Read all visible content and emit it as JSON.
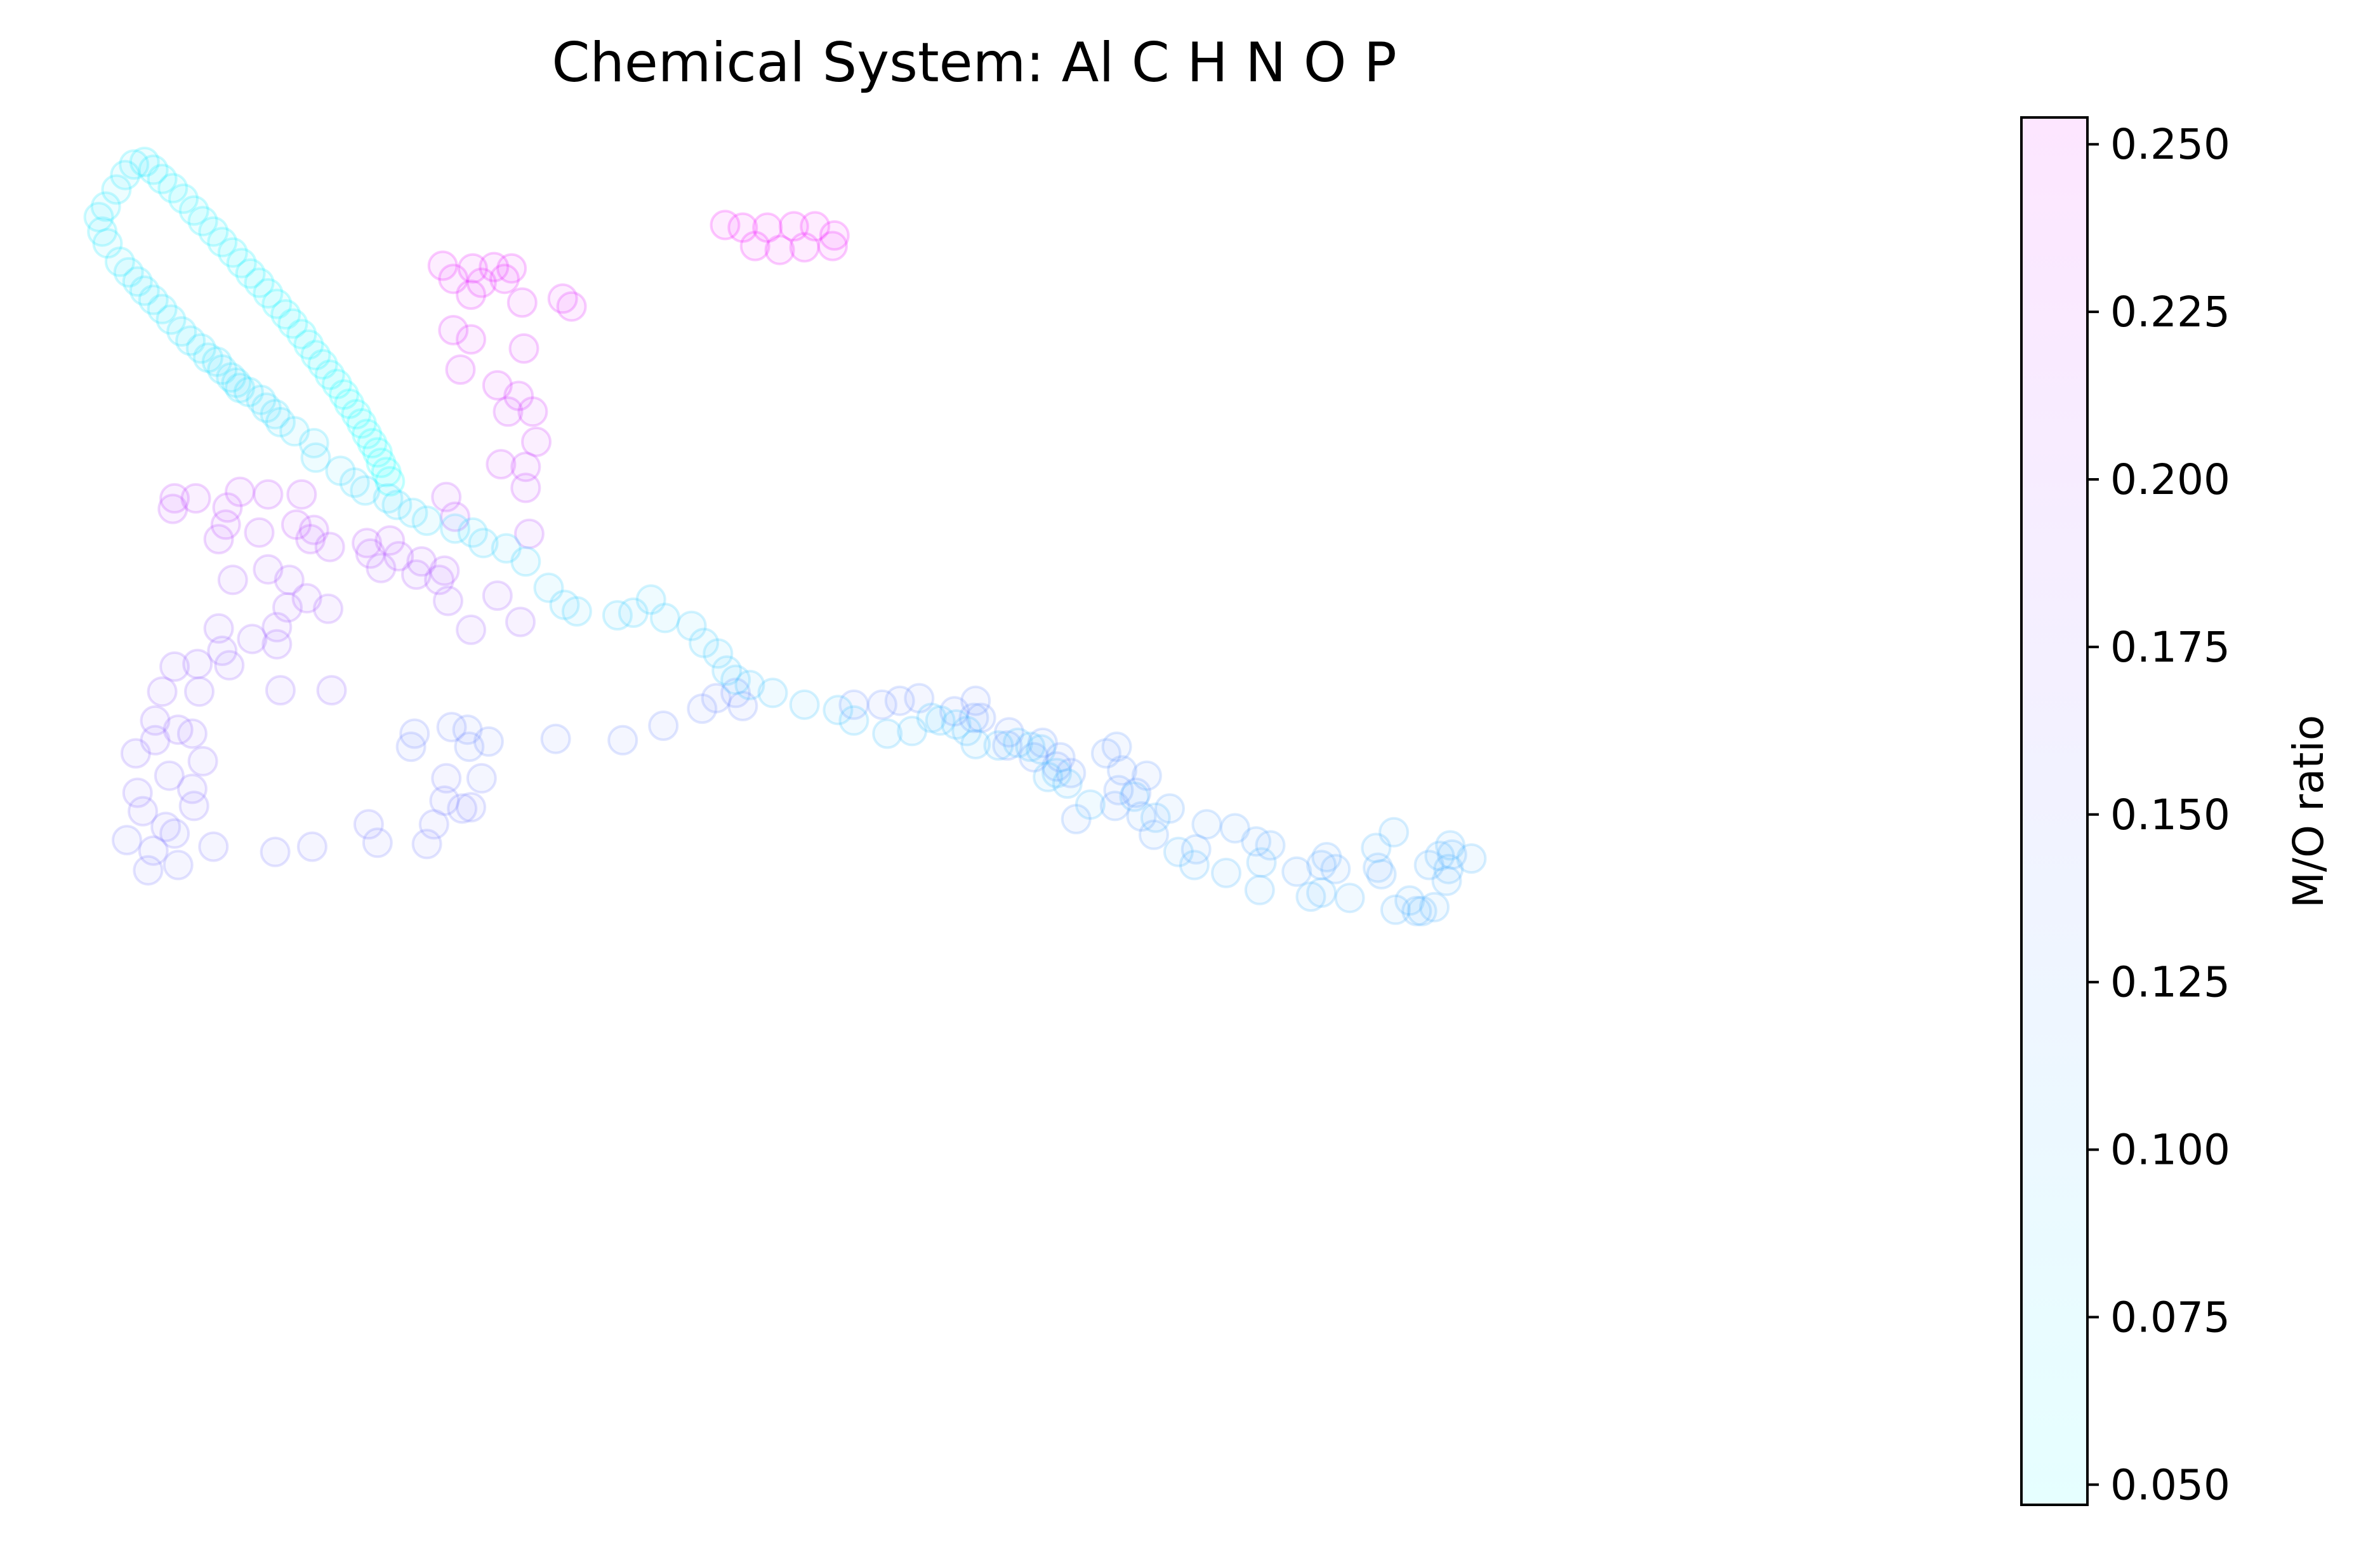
{
  "chart_data": {
    "type": "scatter",
    "title": "Chemical System: Al C H N O P",
    "xlabel": "",
    "ylabel": "",
    "axes_visible": false,
    "grid": false,
    "marker": "hollow circle, semi-transparent",
    "color_mapping": "points colored by M/O ratio from cyan (low) to magenta (high)",
    "colorbar": {
      "label": "M/O ratio",
      "range": [
        0.047,
        0.254
      ],
      "ticks": [
        "0.050",
        "0.075",
        "0.100",
        "0.125",
        "0.150",
        "0.175",
        "0.200",
        "0.225",
        "0.250"
      ],
      "tick_values": [
        0.05,
        0.075,
        0.1,
        0.125,
        0.15,
        0.175,
        0.2,
        0.225,
        0.25
      ],
      "color_low": "#00ffff",
      "color_high": "#ff00ff",
      "placement": "right"
    },
    "xlim": [
      0,
      1000
    ],
    "ylim": [
      0,
      1000
    ],
    "points": [
      [
        357,
        952,
        0.247
      ],
      [
        367,
        950,
        0.246
      ],
      [
        381,
        950,
        0.246
      ],
      [
        396,
        951,
        0.246
      ],
      [
        408,
        951,
        0.246
      ],
      [
        419,
        944,
        0.243
      ],
      [
        374,
        936,
        0.242
      ],
      [
        388,
        933,
        0.241
      ],
      [
        402,
        935,
        0.24
      ],
      [
        418,
        936,
        0.24
      ],
      [
        197,
        921,
        0.238
      ],
      [
        214,
        919,
        0.237
      ],
      [
        226,
        920,
        0.237
      ],
      [
        236,
        919,
        0.236
      ],
      [
        203,
        911,
        0.235
      ],
      [
        219,
        908,
        0.235
      ],
      [
        232,
        911,
        0.234
      ],
      [
        213,
        899,
        0.232
      ],
      [
        242,
        893,
        0.23
      ],
      [
        265,
        896,
        0.23
      ],
      [
        270,
        890,
        0.229
      ],
      [
        203,
        872,
        0.227
      ],
      [
        213,
        865,
        0.226
      ],
      [
        243,
        858,
        0.224
      ],
      [
        207,
        842,
        0.222
      ],
      [
        228,
        830,
        0.22
      ],
      [
        240,
        822,
        0.218
      ],
      [
        248,
        810,
        0.216
      ],
      [
        234,
        810,
        0.215
      ],
      [
        250,
        787,
        0.212
      ],
      [
        230,
        770,
        0.209
      ],
      [
        244,
        768,
        0.208
      ],
      [
        244,
        752,
        0.205
      ],
      [
        45,
        744,
        0.201
      ],
      [
        57,
        744,
        0.201
      ],
      [
        82,
        749,
        0.201
      ],
      [
        98,
        747,
        0.2
      ],
      [
        117,
        747,
        0.2
      ],
      [
        199,
        745,
        0.2
      ],
      [
        44,
        736,
        0.199
      ],
      [
        75,
        737,
        0.199
      ],
      [
        74,
        724,
        0.198
      ],
      [
        114,
        724,
        0.198
      ],
      [
        204,
        730,
        0.198
      ],
      [
        246,
        717,
        0.196
      ],
      [
        70,
        713,
        0.196
      ],
      [
        93,
        718,
        0.196
      ],
      [
        122,
        713,
        0.195
      ],
      [
        124,
        720,
        0.195
      ],
      [
        154,
        710,
        0.193
      ],
      [
        167,
        712,
        0.193
      ],
      [
        133,
        707,
        0.192
      ],
      [
        156,
        702,
        0.191
      ],
      [
        172,
        700,
        0.19
      ],
      [
        185,
        696,
        0.189
      ],
      [
        198,
        689,
        0.188
      ],
      [
        195,
        682,
        0.187
      ],
      [
        162,
        691,
        0.186
      ],
      [
        182,
        686,
        0.186
      ],
      [
        98,
        690,
        0.186
      ],
      [
        110,
        682,
        0.185
      ],
      [
        78,
        682,
        0.185
      ],
      [
        120,
        668,
        0.183
      ],
      [
        132,
        660,
        0.182
      ],
      [
        109,
        661,
        0.182
      ],
      [
        200,
        666,
        0.181
      ],
      [
        228,
        670,
        0.181
      ],
      [
        213,
        644,
        0.178
      ],
      [
        241,
        650,
        0.178
      ],
      [
        103,
        646,
        0.177
      ],
      [
        103,
        633,
        0.176
      ],
      [
        89,
        637,
        0.175
      ],
      [
        70,
        645,
        0.175
      ],
      [
        72,
        628,
        0.174
      ],
      [
        58,
        618,
        0.173
      ],
      [
        76,
        617,
        0.172
      ],
      [
        45,
        616,
        0.172
      ],
      [
        38,
        597,
        0.171
      ],
      [
        59,
        597,
        0.17
      ],
      [
        105,
        598,
        0.17
      ],
      [
        134,
        598,
        0.17
      ],
      [
        34,
        575,
        0.168
      ],
      [
        47,
        568,
        0.167
      ],
      [
        34,
        560,
        0.166
      ],
      [
        55,
        565,
        0.166
      ],
      [
        61,
        544,
        0.164
      ],
      [
        23,
        550,
        0.164
      ],
      [
        42,
        533,
        0.162
      ],
      [
        24,
        520,
        0.161
      ],
      [
        55,
        523,
        0.16
      ],
      [
        56,
        510,
        0.158
      ],
      [
        27,
        506,
        0.158
      ],
      [
        40,
        494,
        0.156
      ],
      [
        45,
        489,
        0.155
      ],
      [
        67,
        479,
        0.154
      ],
      [
        33,
        476,
        0.153
      ],
      [
        47,
        465,
        0.152
      ],
      [
        30,
        461,
        0.151
      ],
      [
        18,
        484,
        0.15
      ],
      [
        102,
        475,
        0.15
      ],
      [
        123,
        479,
        0.149
      ],
      [
        160,
        482,
        0.148
      ],
      [
        188,
        481,
        0.148
      ],
      [
        155,
        496,
        0.149
      ],
      [
        192,
        496,
        0.148
      ],
      [
        208,
        508,
        0.148
      ],
      [
        198,
        514,
        0.147
      ],
      [
        213,
        509,
        0.147
      ],
      [
        199,
        531,
        0.146
      ],
      [
        219,
        531,
        0.145
      ],
      [
        179,
        555,
        0.144
      ],
      [
        181,
        565,
        0.143
      ],
      [
        202,
        570,
        0.142
      ],
      [
        212,
        555,
        0.141
      ],
      [
        223,
        559,
        0.14
      ],
      [
        211,
        568,
        0.14
      ],
      [
        261,
        561,
        0.14
      ],
      [
        299,
        560,
        0.14
      ],
      [
        322,
        571,
        0.14
      ],
      [
        344,
        584,
        0.139
      ],
      [
        352,
        592,
        0.139
      ],
      [
        367,
        586,
        0.138
      ],
      [
        363,
        596,
        0.138
      ],
      [
        430,
        587,
        0.137
      ],
      [
        446,
        587,
        0.137
      ],
      [
        456,
        590,
        0.137
      ],
      [
        467,
        592,
        0.136
      ],
      [
        487,
        582,
        0.136
      ],
      [
        499,
        590,
        0.136
      ],
      [
        502,
        577,
        0.135
      ],
      [
        518,
        566,
        0.135
      ],
      [
        498,
        577,
        0.134
      ],
      [
        517,
        556,
        0.134
      ],
      [
        537,
        558,
        0.133
      ],
      [
        547,
        547,
        0.132
      ],
      [
        532,
        547,
        0.132
      ],
      [
        553,
        535,
        0.131
      ],
      [
        545,
        540,
        0.131
      ],
      [
        573,
        550,
        0.13
      ],
      [
        579,
        555,
        0.13
      ],
      [
        582,
        537,
        0.129
      ],
      [
        580,
        522,
        0.128
      ],
      [
        596,
        533,
        0.128
      ],
      [
        590,
        520,
        0.127
      ],
      [
        578,
        510,
        0.126
      ],
      [
        556,
        500,
        0.125
      ],
      [
        593,
        502,
        0.124
      ],
      [
        600,
        488,
        0.123
      ],
      [
        624,
        477,
        0.122
      ],
      [
        609,
        508,
        0.122
      ],
      [
        630,
        496,
        0.121
      ],
      [
        646,
        493,
        0.12
      ],
      [
        681,
        460,
        0.118
      ],
      [
        658,
        483,
        0.118
      ],
      [
        666,
        480,
        0.117
      ],
      [
        698,
        471,
        0.116
      ],
      [
        695,
        465,
        0.116
      ],
      [
        703,
        462,
        0.116
      ],
      [
        727,
        463,
        0.115
      ],
      [
        729,
        458,
        0.114
      ],
      [
        756,
        465,
        0.113
      ],
      [
        769,
        473,
        0.112
      ],
      [
        749,
        430,
        0.112
      ],
      [
        737,
        431,
        0.111
      ],
      [
        745,
        438,
        0.111
      ],
      [
        752,
        430,
        0.11
      ],
      [
        759,
        433,
        0.11
      ],
      [
        766,
        453,
        0.11
      ],
      [
        767,
        462,
        0.11
      ],
      [
        762,
        472,
        0.109
      ],
      [
        780,
        470,
        0.108
      ],
      [
        768,
        480,
        0.108
      ],
      [
        736,
        490,
        0.107
      ],
      [
        726,
        478,
        0.107
      ],
      [
        689,
        441,
        0.106
      ],
      [
        695,
        444,
        0.106
      ],
      [
        711,
        440,
        0.106
      ],
      [
        660,
        446,
        0.106
      ],
      [
        661,
        467,
        0.106
      ],
      [
        641,
        459,
        0.105
      ],
      [
        623,
        465,
        0.105
      ],
      [
        614,
        475,
        0.105
      ],
      [
        601,
        501,
        0.105
      ],
      [
        589,
        517,
        0.105
      ],
      [
        564,
        511,
        0.104
      ],
      [
        551,
        527,
        0.104
      ],
      [
        545,
        535,
        0.104
      ],
      [
        540,
        532,
        0.103
      ],
      [
        536,
        553,
        0.103
      ],
      [
        530,
        555,
        0.103
      ],
      [
        523,
        558,
        0.102
      ],
      [
        512,
        556,
        0.102
      ],
      [
        499,
        557,
        0.101
      ],
      [
        494,
        567,
        0.101
      ],
      [
        488,
        572,
        0.1
      ],
      [
        479,
        575,
        0.1
      ],
      [
        474,
        577,
        0.099
      ],
      [
        463,
        567,
        0.098
      ],
      [
        449,
        565,
        0.097
      ],
      [
        430,
        575,
        0.096
      ],
      [
        421,
        583,
        0.096
      ],
      [
        402,
        587,
        0.095
      ],
      [
        384,
        596,
        0.095
      ],
      [
        371,
        602,
        0.094
      ],
      [
        363,
        606,
        0.094
      ],
      [
        358,
        613,
        0.093
      ],
      [
        353,
        626,
        0.092
      ],
      [
        345,
        634,
        0.091
      ],
      [
        338,
        647,
        0.09
      ],
      [
        323,
        653,
        0.089
      ],
      [
        315,
        667,
        0.088
      ],
      [
        305,
        657,
        0.088
      ],
      [
        296,
        655,
        0.088
      ],
      [
        273,
        658,
        0.087
      ],
      [
        266,
        663,
        0.087
      ],
      [
        257,
        676,
        0.086
      ],
      [
        244,
        696,
        0.085
      ],
      [
        233,
        706,
        0.084
      ],
      [
        220,
        710,
        0.084
      ],
      [
        214,
        718,
        0.083
      ],
      [
        204,
        721,
        0.083
      ],
      [
        188,
        727,
        0.082
      ],
      [
        180,
        733,
        0.082
      ],
      [
        171,
        739,
        0.081
      ],
      [
        166,
        744,
        0.081
      ],
      [
        153,
        750,
        0.08
      ],
      [
        147,
        756,
        0.08
      ],
      [
        139,
        765,
        0.079
      ],
      [
        125,
        775,
        0.079
      ],
      [
        124,
        786,
        0.078
      ],
      [
        113,
        795,
        0.078
      ],
      [
        105,
        802,
        0.077
      ],
      [
        102,
        808,
        0.077
      ],
      [
        97,
        813,
        0.076
      ],
      [
        94,
        819,
        0.076
      ],
      [
        87,
        825,
        0.075
      ],
      [
        82,
        828,
        0.075
      ],
      [
        80,
        832,
        0.074
      ],
      [
        77,
        836,
        0.074
      ],
      [
        72,
        842,
        0.073
      ],
      [
        69,
        848,
        0.073
      ],
      [
        64,
        851,
        0.072
      ],
      [
        60,
        858,
        0.072
      ],
      [
        54,
        864,
        0.071
      ],
      [
        49,
        871,
        0.071
      ],
      [
        43,
        880,
        0.07
      ],
      [
        38,
        888,
        0.07
      ],
      [
        33,
        895,
        0.069
      ],
      [
        28,
        902,
        0.069
      ],
      [
        24,
        909,
        0.068
      ],
      [
        19,
        916,
        0.068
      ],
      [
        14,
        924,
        0.067
      ],
      [
        7,
        938,
        0.067
      ],
      [
        4,
        947,
        0.066
      ],
      [
        2,
        958,
        0.066
      ],
      [
        6,
        966,
        0.065
      ],
      [
        12,
        979,
        0.065
      ],
      [
        17,
        990,
        0.064
      ],
      [
        22,
        998,
        0.064
      ],
      [
        28,
        1000,
        0.063
      ],
      [
        33,
        994,
        0.063
      ],
      [
        38,
        987,
        0.062
      ],
      [
        44,
        980,
        0.062
      ],
      [
        50,
        972,
        0.061
      ],
      [
        56,
        963,
        0.061
      ],
      [
        61,
        955,
        0.06
      ],
      [
        67,
        947,
        0.06
      ],
      [
        72,
        939,
        0.059
      ],
      [
        78,
        931,
        0.059
      ],
      [
        83,
        923,
        0.058
      ],
      [
        88,
        915,
        0.058
      ],
      [
        93,
        908,
        0.057
      ],
      [
        98,
        900,
        0.057
      ],
      [
        103,
        892,
        0.056
      ],
      [
        108,
        884,
        0.056
      ],
      [
        112,
        877,
        0.055
      ],
      [
        117,
        869,
        0.055
      ],
      [
        121,
        861,
        0.054
      ],
      [
        125,
        853,
        0.054
      ],
      [
        129,
        846,
        0.053
      ],
      [
        133,
        838,
        0.053
      ],
      [
        137,
        831,
        0.052
      ],
      [
        141,
        823,
        0.052
      ],
      [
        144,
        816,
        0.051
      ],
      [
        148,
        808,
        0.051
      ],
      [
        151,
        801,
        0.05
      ],
      [
        154,
        793,
        0.05
      ],
      [
        157,
        786,
        0.049
      ],
      [
        160,
        779,
        0.049
      ],
      [
        162,
        771,
        0.048
      ],
      [
        165,
        764,
        0.048
      ],
      [
        167,
        757,
        0.047
      ]
    ]
  }
}
